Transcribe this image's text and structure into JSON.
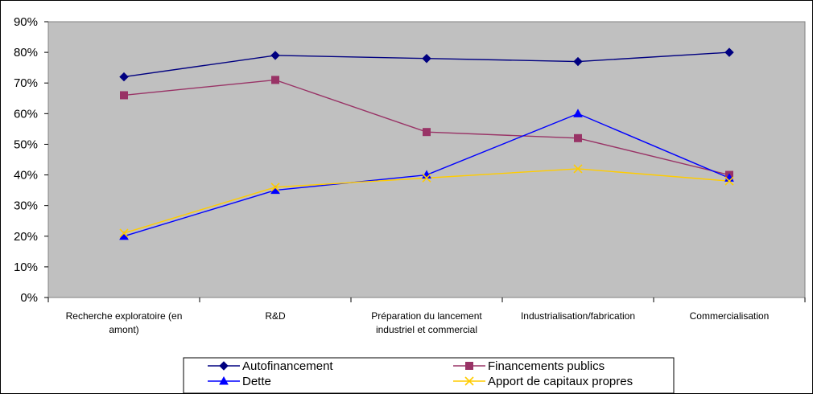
{
  "chart_data": {
    "type": "line",
    "title": "",
    "xlabel": "",
    "ylabel": "",
    "ylim": [
      0,
      90
    ],
    "ytick_step": 10,
    "ytick_suffix": "%",
    "grid": false,
    "plot_background": "#c0c0c0",
    "legend_position": "bottom",
    "categories": [
      [
        "Recherche exploratoire (en",
        "amont)"
      ],
      [
        "R&D"
      ],
      [
        "Préparation du lancement",
        "industriel et commercial"
      ],
      [
        "Industrialisation/fabrication"
      ],
      [
        "Commercialisation"
      ]
    ],
    "series": [
      {
        "name": "Autofinancement",
        "color": "#000080",
        "marker": "diamond",
        "values": [
          72,
          79,
          78,
          77,
          80
        ]
      },
      {
        "name": "Financements publics",
        "color": "#993366",
        "marker": "square",
        "values": [
          66,
          71,
          54,
          52,
          40
        ]
      },
      {
        "name": "Dette",
        "color": "#0000ff",
        "marker": "triangle",
        "values": [
          20,
          35,
          40,
          60,
          39
        ]
      },
      {
        "name": "Apport de capitaux propres",
        "color": "#ffcc00",
        "marker": "x",
        "values": [
          21,
          36,
          39,
          42,
          38
        ]
      }
    ]
  }
}
